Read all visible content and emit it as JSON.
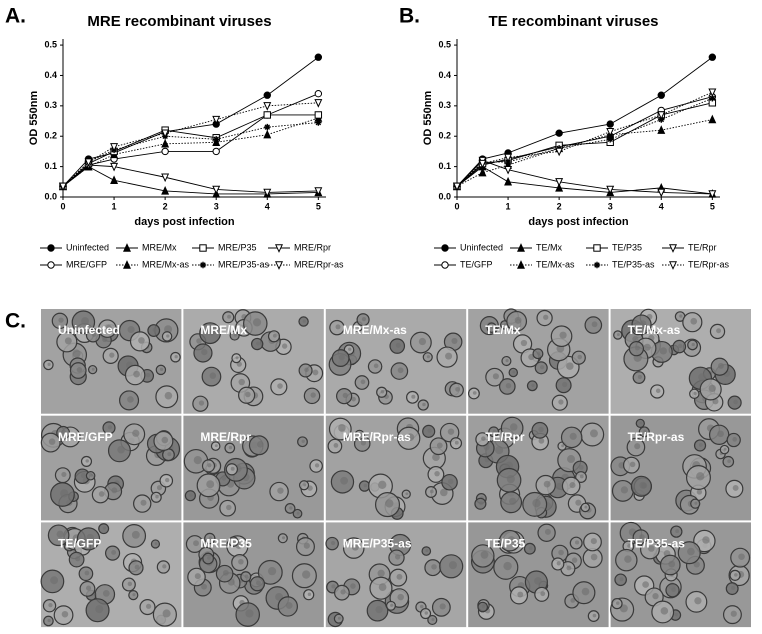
{
  "chart_data": [
    {
      "type": "line",
      "panel_label": "A.",
      "title": "MRE recombinant  viruses",
      "xlabel": "days post infection",
      "ylabel": "OD 550nm",
      "x": [
        0,
        0.5,
        1,
        2,
        3,
        4,
        5
      ],
      "xlim": [
        0,
        5.15
      ],
      "xticks": [
        0,
        1,
        2,
        3,
        4,
        5
      ],
      "ylim": [
        0,
        0.52
      ],
      "yticks": [
        {
          "value": 0,
          "label": "0.0"
        },
        0.1,
        0.2,
        0.3,
        0.4,
        0.5
      ],
      "grid": false,
      "series": [
        {
          "name": "Uninfected",
          "color": "#000000",
          "marker": "circle-filled",
          "dotted": false,
          "values": [
            0.035,
            0.125,
            0.145,
            0.215,
            0.24,
            0.335,
            0.46
          ]
        },
        {
          "name": "MRE/GFP",
          "color": "#000000",
          "marker": "circle-open",
          "dotted": false,
          "values": [
            0.035,
            0.105,
            0.125,
            0.15,
            0.15,
            0.27,
            0.34
          ]
        },
        {
          "name": "MRE/Mx",
          "color": "#000000",
          "marker": "triangle-filled",
          "dotted": false,
          "values": [
            0.035,
            0.1,
            0.055,
            0.02,
            0.01,
            0.01,
            0.015
          ]
        },
        {
          "name": "MRE/Mx-as",
          "color": "#000000",
          "marker": "triangle-filled",
          "dotted": true,
          "values": [
            0.035,
            0.1,
            0.14,
            0.175,
            0.18,
            0.205,
            0.26
          ]
        },
        {
          "name": "MRE/P35",
          "color": "#000000",
          "marker": "square-open",
          "dotted": false,
          "values": [
            0.035,
            0.11,
            0.15,
            0.22,
            0.195,
            0.27,
            0.27
          ]
        },
        {
          "name": "MRE/P35-as",
          "color": "#000000",
          "marker": "asterisk",
          "dotted": true,
          "values": [
            0.035,
            0.115,
            0.155,
            0.2,
            0.19,
            0.23,
            0.245
          ]
        },
        {
          "name": "MRE/Rpr",
          "color": "#000000",
          "marker": "triangle-down-open",
          "dotted": false,
          "values": [
            0.035,
            0.105,
            0.1,
            0.065,
            0.025,
            0.015,
            0.02
          ]
        },
        {
          "name": "MRE/Rpr-as",
          "color": "#000000",
          "marker": "triangle-down-open",
          "dotted": true,
          "values": [
            0.035,
            0.115,
            0.165,
            0.21,
            0.255,
            0.3,
            0.31
          ]
        }
      ]
    },
    {
      "type": "line",
      "panel_label": "B.",
      "title": "TE  recombinant viruses",
      "xlabel": "days post infection",
      "ylabel": "OD 550nm",
      "x": [
        0,
        0.5,
        1,
        2,
        3,
        4,
        5
      ],
      "xlim": [
        0,
        5.15
      ],
      "xticks": [
        0,
        1,
        2,
        3,
        4,
        5
      ],
      "ylim": [
        0,
        0.52
      ],
      "yticks": [
        {
          "value": 0,
          "label": "0.0"
        },
        0.1,
        0.2,
        0.3,
        0.4,
        0.5
      ],
      "grid": false,
      "series": [
        {
          "name": "Uninfected",
          "color": "#000000",
          "marker": "circle-filled",
          "dotted": false,
          "values": [
            0.035,
            0.125,
            0.145,
            0.21,
            0.24,
            0.335,
            0.46
          ]
        },
        {
          "name": "TE/GFP",
          "color": "#000000",
          "marker": "circle-open",
          "dotted": false,
          "values": [
            0.035,
            0.105,
            0.125,
            0.165,
            0.2,
            0.285,
            0.33
          ]
        },
        {
          "name": "TE/Mx",
          "color": "#000000",
          "marker": "triangle-filled",
          "dotted": false,
          "values": [
            0.035,
            0.1,
            0.05,
            0.03,
            0.015,
            0.03,
            0.01
          ]
        },
        {
          "name": "TE/Mx-as",
          "color": "#000000",
          "marker": "triangle-filled",
          "dotted": true,
          "values": [
            0.035,
            0.08,
            0.105,
            0.16,
            0.205,
            0.22,
            0.255
          ]
        },
        {
          "name": "TE/P35",
          "color": "#000000",
          "marker": "square-open",
          "dotted": false,
          "values": [
            0.035,
            0.11,
            0.12,
            0.17,
            0.18,
            0.27,
            0.31
          ]
        },
        {
          "name": "TE/P35-as",
          "color": "#000000",
          "marker": "asterisk",
          "dotted": true,
          "values": [
            0.035,
            0.115,
            0.115,
            0.16,
            0.19,
            0.255,
            0.325
          ]
        },
        {
          "name": "TE/Rpr",
          "color": "#000000",
          "marker": "triangle-down-open",
          "dotted": false,
          "values": [
            0.035,
            0.12,
            0.09,
            0.05,
            0.025,
            0.015,
            0.01
          ]
        },
        {
          "name": "TE/Rpr-as",
          "color": "#000000",
          "marker": "triangle-down-open",
          "dotted": true,
          "values": [
            0.035,
            0.11,
            0.13,
            0.15,
            0.215,
            0.27,
            0.345
          ]
        }
      ]
    }
  ],
  "panel_c": {
    "label": "C.",
    "images": [
      "Uninfected",
      "MRE/Mx",
      "MRE/Mx-as",
      "TE/Mx",
      "TE/Mx-as",
      "MRE/GFP",
      "MRE/Rpr",
      "MRE/Rpr-as",
      "TE/Rpr",
      "TE/Rpr-as",
      "TE/GFP",
      "MRE/P35",
      "MRE/P35-as",
      "TE/P35",
      "TE/P35-as"
    ]
  }
}
